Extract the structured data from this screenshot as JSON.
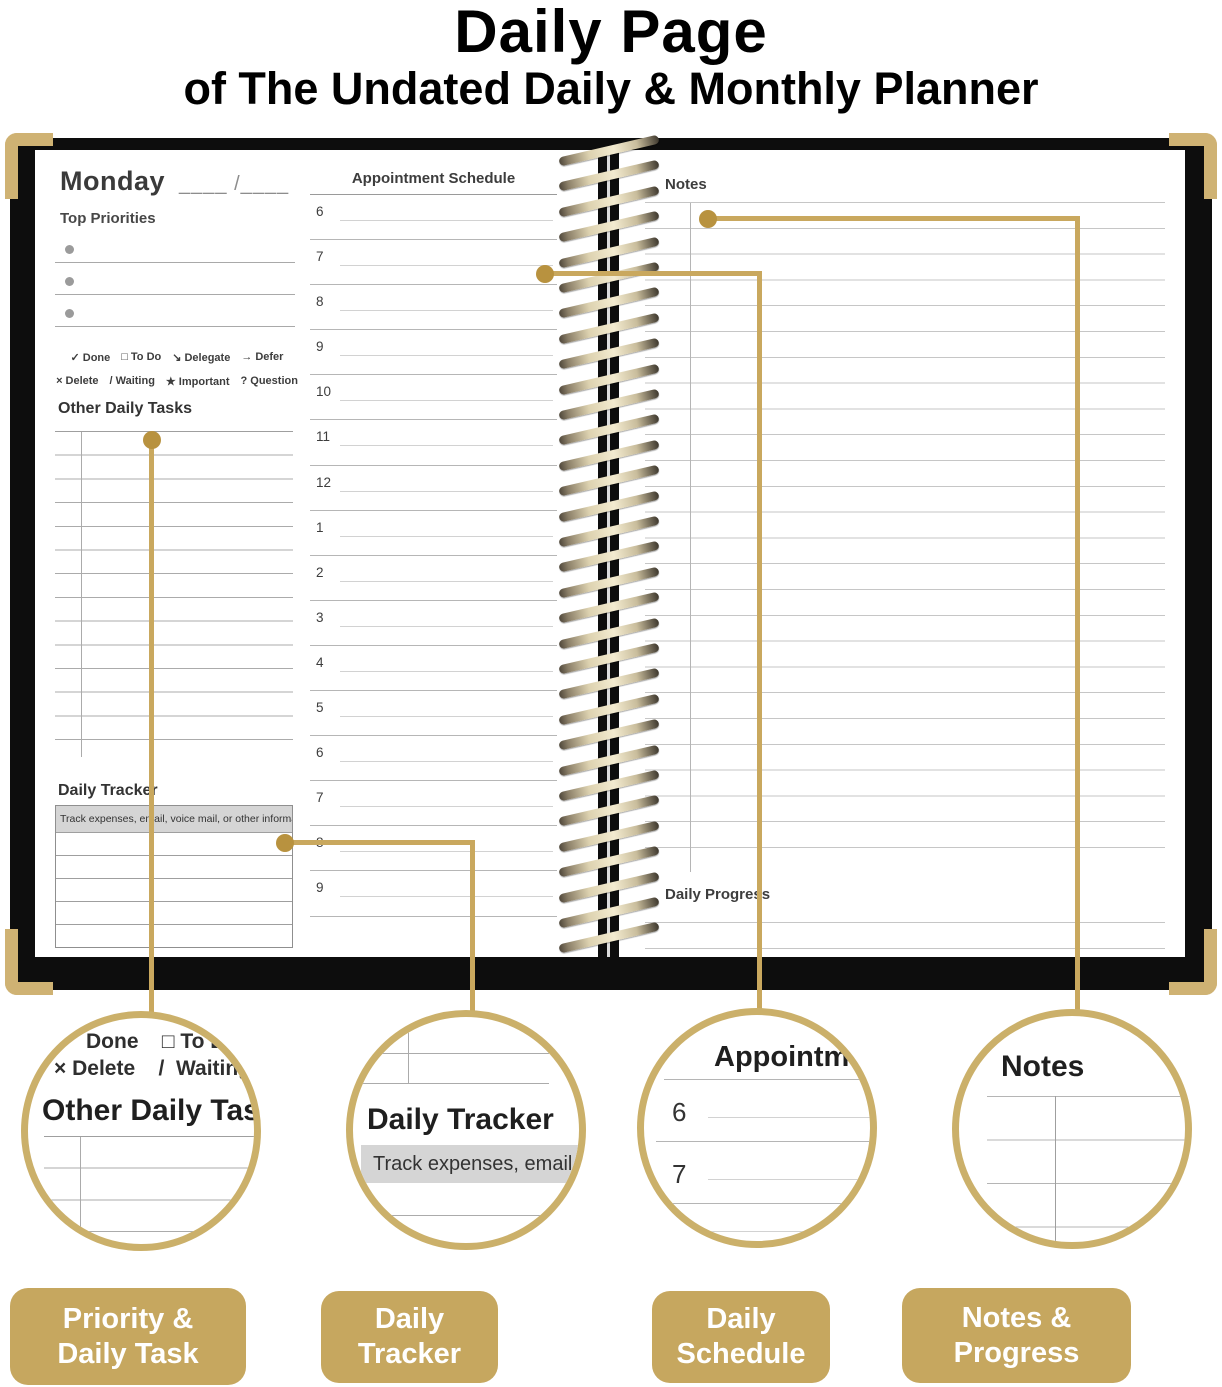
{
  "page_title": {
    "line1": "Daily Page",
    "line2": "of The Undated Daily & Monthly Planner"
  },
  "planner": {
    "left_page": {
      "day_label": "Monday",
      "date_blank": "____ /____",
      "top_priorities_label": "Top Priorities",
      "legend_row1": [
        {
          "symbol": "✓",
          "label": "Done"
        },
        {
          "symbol": "□",
          "label": "To Do"
        },
        {
          "symbol": "↘",
          "label": "Delegate"
        },
        {
          "symbol": "→",
          "label": "Defer"
        }
      ],
      "legend_row2": [
        {
          "symbol": "×",
          "label": "Delete"
        },
        {
          "symbol": "/",
          "label": "Waiting"
        },
        {
          "symbol": "★",
          "label": "Important"
        },
        {
          "symbol": "?",
          "label": "Question"
        }
      ],
      "other_daily_tasks_label": "Other Daily Tasks",
      "daily_tracker_label": "Daily Tracker",
      "daily_tracker_hint": "Track expenses, email, voice mail, or other information."
    },
    "schedule": {
      "title": "Appointment Schedule",
      "hours": [
        "6",
        "7",
        "8",
        "9",
        "10",
        "11",
        "12",
        "1",
        "2",
        "3",
        "4",
        "5",
        "6",
        "7",
        "8",
        "9"
      ]
    },
    "right_page": {
      "notes_label": "Notes",
      "daily_progress_label": "Daily Progress"
    }
  },
  "callouts": {
    "priority": {
      "zoom_row1": "Done    □ To Do",
      "zoom_row2": "× Delete    /  Waiting    ★",
      "zoom_heading": "Other Daily Tasks",
      "pill_line1": "Priority &",
      "pill_line2": "Daily Task"
    },
    "tracker": {
      "zoom_heading": "Daily Tracker",
      "zoom_hint": "Track expenses, email, voice mai",
      "pill_line1": "Daily",
      "pill_line2": "Tracker"
    },
    "schedule": {
      "zoom_heading": "Appointmen",
      "zoom_hours": [
        "6",
        "7"
      ],
      "pill_line1": "Daily",
      "pill_line2": "Schedule"
    },
    "notes": {
      "zoom_heading": "Notes",
      "pill_line1": "Notes &",
      "pill_line2": "Progress"
    }
  },
  "colors": {
    "gold_line": "#c9a85e",
    "gold_dot": "#b8923f",
    "circle_border": "#cbb06a",
    "pill_background": "#c6a75f",
    "cover_black": "#0d0d0d",
    "tracker_bar_gray": "#d5d5d5"
  }
}
